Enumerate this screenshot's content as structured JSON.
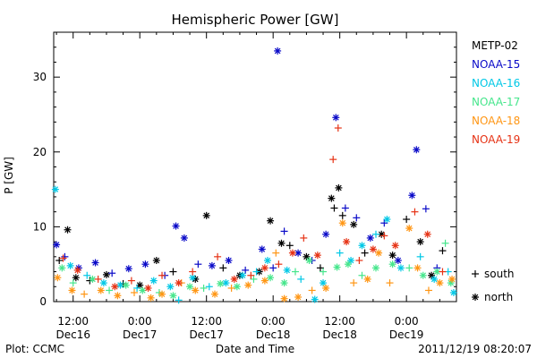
{
  "footer": {
    "plot_credit": "Plot: CCMC",
    "timestamp": "2011/12/19 08:20:07"
  },
  "chart_data": {
    "type": "scatter",
    "title": "Hemispheric Power [GW]",
    "xlabel": "Date and Time",
    "ylabel": "P [GW]",
    "x_unit": "hours since 2011-12-16 00:00",
    "xlim": [
      8.5,
      81
    ],
    "ylim": [
      0,
      36
    ],
    "grid": false,
    "yticks": [
      0,
      10,
      20,
      30
    ],
    "xticks": [
      {
        "x": 12,
        "label": "12:00",
        "date": "Dec16"
      },
      {
        "x": 24,
        "label": "0:00",
        "date": "Dec17"
      },
      {
        "x": 36,
        "label": "12:00",
        "date": "Dec17"
      },
      {
        "x": 48,
        "label": "0:00",
        "date": "Dec18"
      },
      {
        "x": 60,
        "label": "12:00",
        "date": "Dec18"
      },
      {
        "x": 72,
        "label": "0:00",
        "date": "Dec19"
      }
    ],
    "legend_placement": "right, outside plot",
    "marker_legend": [
      {
        "symbol": "+",
        "label": "south"
      },
      {
        "symbol": "*",
        "label": "north"
      }
    ],
    "series": [
      {
        "name": "METP-02",
        "color": "#000000",
        "points": [
          {
            "x": 9.5,
            "y": 5.5,
            "m": "+"
          },
          {
            "x": 11.0,
            "y": 9.6,
            "m": "*"
          },
          {
            "x": 12.5,
            "y": 3.2,
            "m": "*"
          },
          {
            "x": 15.0,
            "y": 2.8,
            "m": "+"
          },
          {
            "x": 18.0,
            "y": 3.6,
            "m": "*"
          },
          {
            "x": 21.0,
            "y": 2.4,
            "m": "+"
          },
          {
            "x": 24.0,
            "y": 2.2,
            "m": "*"
          },
          {
            "x": 27.0,
            "y": 5.5,
            "m": "*"
          },
          {
            "x": 30.0,
            "y": 4.0,
            "m": "+"
          },
          {
            "x": 34.0,
            "y": 3.0,
            "m": "*"
          },
          {
            "x": 36.0,
            "y": 11.5,
            "m": "*"
          },
          {
            "x": 39.0,
            "y": 4.5,
            "m": "+"
          },
          {
            "x": 42.0,
            "y": 3.5,
            "m": "*"
          },
          {
            "x": 45.5,
            "y": 4.0,
            "m": "*"
          },
          {
            "x": 47.5,
            "y": 10.8,
            "m": "*"
          },
          {
            "x": 49.5,
            "y": 7.8,
            "m": "*"
          },
          {
            "x": 51.0,
            "y": 7.5,
            "m": "+"
          },
          {
            "x": 54.0,
            "y": 6.0,
            "m": "*"
          },
          {
            "x": 56.5,
            "y": 4.5,
            "m": "+"
          },
          {
            "x": 58.5,
            "y": 13.8,
            "m": "*"
          },
          {
            "x": 59.0,
            "y": 12.5,
            "m": "+"
          },
          {
            "x": 59.8,
            "y": 15.2,
            "m": "*"
          },
          {
            "x": 60.5,
            "y": 11.5,
            "m": "+"
          },
          {
            "x": 62.5,
            "y": 10.3,
            "m": "*"
          },
          {
            "x": 64.5,
            "y": 6.5,
            "m": "+"
          },
          {
            "x": 67.5,
            "y": 9.0,
            "m": "*"
          },
          {
            "x": 69.5,
            "y": 6.2,
            "m": "*"
          },
          {
            "x": 72.0,
            "y": 11.0,
            "m": "+"
          },
          {
            "x": 74.5,
            "y": 8.0,
            "m": "*"
          },
          {
            "x": 76.5,
            "y": 3.5,
            "m": "*"
          },
          {
            "x": 78.5,
            "y": 6.8,
            "m": "+"
          }
        ]
      },
      {
        "name": "NOAA-15",
        "color": "#0a0ac8",
        "points": [
          {
            "x": 9.0,
            "y": 7.6,
            "m": "*"
          },
          {
            "x": 10.5,
            "y": 6.0,
            "m": "+"
          },
          {
            "x": 13.0,
            "y": 4.5,
            "m": "*"
          },
          {
            "x": 16.0,
            "y": 5.2,
            "m": "*"
          },
          {
            "x": 19.0,
            "y": 3.8,
            "m": "+"
          },
          {
            "x": 22.0,
            "y": 4.4,
            "m": "*"
          },
          {
            "x": 25.0,
            "y": 5.0,
            "m": "*"
          },
          {
            "x": 28.5,
            "y": 3.5,
            "m": "+"
          },
          {
            "x": 30.5,
            "y": 10.1,
            "m": "*"
          },
          {
            "x": 32.0,
            "y": 8.5,
            "m": "*"
          },
          {
            "x": 34.5,
            "y": 5.0,
            "m": "+"
          },
          {
            "x": 37.0,
            "y": 4.8,
            "m": "*"
          },
          {
            "x": 40.0,
            "y": 5.5,
            "m": "*"
          },
          {
            "x": 43.0,
            "y": 4.2,
            "m": "+"
          },
          {
            "x": 46.0,
            "y": 7.0,
            "m": "*"
          },
          {
            "x": 48.0,
            "y": 4.5,
            "m": "+"
          },
          {
            "x": 48.8,
            "y": 33.5,
            "m": "*"
          },
          {
            "x": 50.0,
            "y": 9.4,
            "m": "+"
          },
          {
            "x": 52.5,
            "y": 6.5,
            "m": "*"
          },
          {
            "x": 55.0,
            "y": 5.5,
            "m": "+"
          },
          {
            "x": 57.5,
            "y": 9.0,
            "m": "*"
          },
          {
            "x": 59.3,
            "y": 24.6,
            "m": "*"
          },
          {
            "x": 61.0,
            "y": 12.5,
            "m": "+"
          },
          {
            "x": 63.0,
            "y": 11.2,
            "m": "+"
          },
          {
            "x": 65.5,
            "y": 8.5,
            "m": "*"
          },
          {
            "x": 68.0,
            "y": 10.5,
            "m": "+"
          },
          {
            "x": 70.5,
            "y": 5.5,
            "m": "*"
          },
          {
            "x": 73.0,
            "y": 14.2,
            "m": "*"
          },
          {
            "x": 73.8,
            "y": 20.3,
            "m": "*"
          },
          {
            "x": 75.5,
            "y": 12.4,
            "m": "+"
          },
          {
            "x": 77.5,
            "y": 4.5,
            "m": "+"
          }
        ]
      },
      {
        "name": "NOAA-16",
        "color": "#00c8e6",
        "points": [
          {
            "x": 8.8,
            "y": 15.0,
            "m": "*"
          },
          {
            "x": 11.5,
            "y": 4.8,
            "m": "*"
          },
          {
            "x": 14.5,
            "y": 3.5,
            "m": "+"
          },
          {
            "x": 17.5,
            "y": 2.5,
            "m": "*"
          },
          {
            "x": 20.5,
            "y": 2.2,
            "m": "*"
          },
          {
            "x": 23.5,
            "y": 1.8,
            "m": "+"
          },
          {
            "x": 26.5,
            "y": 2.8,
            "m": "*"
          },
          {
            "x": 29.5,
            "y": 2.0,
            "m": "*"
          },
          {
            "x": 31.0,
            "y": 0.2,
            "m": "+"
          },
          {
            "x": 33.5,
            "y": 3.2,
            "m": "*"
          },
          {
            "x": 36.5,
            "y": 2.0,
            "m": "+"
          },
          {
            "x": 39.5,
            "y": 2.5,
            "m": "*"
          },
          {
            "x": 42.5,
            "y": 3.5,
            "m": "*"
          },
          {
            "x": 45.0,
            "y": 4.0,
            "m": "+"
          },
          {
            "x": 47.0,
            "y": 5.5,
            "m": "*"
          },
          {
            "x": 50.5,
            "y": 4.2,
            "m": "*"
          },
          {
            "x": 53.0,
            "y": 3.0,
            "m": "+"
          },
          {
            "x": 55.5,
            "y": 0.3,
            "m": "*"
          },
          {
            "x": 57.0,
            "y": 2.5,
            "m": "*"
          },
          {
            "x": 60.0,
            "y": 6.5,
            "m": "+"
          },
          {
            "x": 62.0,
            "y": 5.5,
            "m": "*"
          },
          {
            "x": 64.0,
            "y": 7.5,
            "m": "*"
          },
          {
            "x": 66.5,
            "y": 9.0,
            "m": "+"
          },
          {
            "x": 68.5,
            "y": 11.0,
            "m": "*"
          },
          {
            "x": 71.0,
            "y": 4.5,
            "m": "*"
          },
          {
            "x": 74.5,
            "y": 6.0,
            "m": "+"
          },
          {
            "x": 77.0,
            "y": 3.0,
            "m": "*"
          },
          {
            "x": 79.5,
            "y": 4.0,
            "m": "+"
          },
          {
            "x": 80.5,
            "y": 1.2,
            "m": "*"
          }
        ]
      },
      {
        "name": "NOAA-17",
        "color": "#46e68c",
        "points": [
          {
            "x": 10.0,
            "y": 4.5,
            "m": "*"
          },
          {
            "x": 12.0,
            "y": 2.5,
            "m": "+"
          },
          {
            "x": 15.5,
            "y": 3.0,
            "m": "*"
          },
          {
            "x": 18.5,
            "y": 1.5,
            "m": "+"
          },
          {
            "x": 21.5,
            "y": 2.2,
            "m": "*"
          },
          {
            "x": 24.5,
            "y": 1.5,
            "m": "*"
          },
          {
            "x": 27.5,
            "y": 1.2,
            "m": "+"
          },
          {
            "x": 30.0,
            "y": 0.8,
            "m": "*"
          },
          {
            "x": 33.0,
            "y": 2.0,
            "m": "*"
          },
          {
            "x": 35.5,
            "y": 1.8,
            "m": "+"
          },
          {
            "x": 38.5,
            "y": 2.4,
            "m": "*"
          },
          {
            "x": 41.5,
            "y": 2.0,
            "m": "*"
          },
          {
            "x": 44.5,
            "y": 3.0,
            "m": "+"
          },
          {
            "x": 47.5,
            "y": 3.2,
            "m": "*"
          },
          {
            "x": 50.0,
            "y": 2.5,
            "m": "*"
          },
          {
            "x": 52.0,
            "y": 4.0,
            "m": "+"
          },
          {
            "x": 54.5,
            "y": 5.5,
            "m": "*"
          },
          {
            "x": 57.0,
            "y": 4.0,
            "m": "+"
          },
          {
            "x": 59.5,
            "y": 4.6,
            "m": "*"
          },
          {
            "x": 61.5,
            "y": 5.0,
            "m": "*"
          },
          {
            "x": 64.0,
            "y": 3.5,
            "m": "+"
          },
          {
            "x": 66.5,
            "y": 4.5,
            "m": "*"
          },
          {
            "x": 69.5,
            "y": 5.0,
            "m": "*"
          },
          {
            "x": 72.5,
            "y": 4.5,
            "m": "+"
          },
          {
            "x": 75.0,
            "y": 3.5,
            "m": "*"
          },
          {
            "x": 77.5,
            "y": 4.0,
            "m": "*"
          },
          {
            "x": 79.0,
            "y": 7.8,
            "m": "+"
          },
          {
            "x": 80.0,
            "y": 2.5,
            "m": "*"
          }
        ]
      },
      {
        "name": "NOAA-18",
        "color": "#ff9614",
        "points": [
          {
            "x": 9.2,
            "y": 3.2,
            "m": "*"
          },
          {
            "x": 11.8,
            "y": 1.5,
            "m": "*"
          },
          {
            "x": 14.0,
            "y": 1.0,
            "m": "+"
          },
          {
            "x": 17.0,
            "y": 1.5,
            "m": "*"
          },
          {
            "x": 20.0,
            "y": 0.8,
            "m": "*"
          },
          {
            "x": 23.0,
            "y": 1.2,
            "m": "+"
          },
          {
            "x": 26.0,
            "y": 0.5,
            "m": "*"
          },
          {
            "x": 28.0,
            "y": 1.0,
            "m": "*"
          },
          {
            "x": 31.5,
            "y": 2.5,
            "m": "+"
          },
          {
            "x": 34.0,
            "y": 1.5,
            "m": "*"
          },
          {
            "x": 37.5,
            "y": 1.0,
            "m": "*"
          },
          {
            "x": 40.5,
            "y": 1.8,
            "m": "+"
          },
          {
            "x": 43.5,
            "y": 2.2,
            "m": "*"
          },
          {
            "x": 46.5,
            "y": 2.8,
            "m": "*"
          },
          {
            "x": 48.5,
            "y": 6.5,
            "m": "+"
          },
          {
            "x": 50.0,
            "y": 0.4,
            "m": "*"
          },
          {
            "x": 52.5,
            "y": 0.6,
            "m": "*"
          },
          {
            "x": 55.0,
            "y": 1.5,
            "m": "+"
          },
          {
            "x": 57.5,
            "y": 1.8,
            "m": "*"
          },
          {
            "x": 60.5,
            "y": 10.5,
            "m": "*"
          },
          {
            "x": 62.5,
            "y": 2.5,
            "m": "+"
          },
          {
            "x": 65.0,
            "y": 3.0,
            "m": "*"
          },
          {
            "x": 67.0,
            "y": 6.5,
            "m": "*"
          },
          {
            "x": 69.0,
            "y": 2.5,
            "m": "+"
          },
          {
            "x": 72.5,
            "y": 9.8,
            "m": "*"
          },
          {
            "x": 74.0,
            "y": 4.5,
            "m": "*"
          },
          {
            "x": 76.0,
            "y": 1.5,
            "m": "+"
          },
          {
            "x": 78.0,
            "y": 2.5,
            "m": "*"
          },
          {
            "x": 80.2,
            "y": 3.0,
            "m": "*"
          }
        ]
      },
      {
        "name": "NOAA-19",
        "color": "#e63214",
        "points": [
          {
            "x": 10.2,
            "y": 5.8,
            "m": "+"
          },
          {
            "x": 12.8,
            "y": 4.2,
            "m": "*"
          },
          {
            "x": 16.5,
            "y": 3.0,
            "m": "+"
          },
          {
            "x": 19.5,
            "y": 2.0,
            "m": "*"
          },
          {
            "x": 22.5,
            "y": 2.8,
            "m": "+"
          },
          {
            "x": 25.5,
            "y": 1.8,
            "m": "*"
          },
          {
            "x": 28.0,
            "y": 3.5,
            "m": "+"
          },
          {
            "x": 31.0,
            "y": 2.5,
            "m": "*"
          },
          {
            "x": 33.5,
            "y": 4.0,
            "m": "+"
          },
          {
            "x": 38.0,
            "y": 6.0,
            "m": "+"
          },
          {
            "x": 41.0,
            "y": 3.0,
            "m": "*"
          },
          {
            "x": 44.0,
            "y": 3.5,
            "m": "+"
          },
          {
            "x": 46.5,
            "y": 4.5,
            "m": "*"
          },
          {
            "x": 49.0,
            "y": 5.0,
            "m": "+"
          },
          {
            "x": 51.5,
            "y": 6.5,
            "m": "*"
          },
          {
            "x": 53.5,
            "y": 8.5,
            "m": "+"
          },
          {
            "x": 56.0,
            "y": 6.2,
            "m": "*"
          },
          {
            "x": 58.8,
            "y": 19.0,
            "m": "+"
          },
          {
            "x": 59.7,
            "y": 23.2,
            "m": "+"
          },
          {
            "x": 61.2,
            "y": 8.0,
            "m": "*"
          },
          {
            "x": 63.5,
            "y": 5.5,
            "m": "+"
          },
          {
            "x": 66.0,
            "y": 7.0,
            "m": "*"
          },
          {
            "x": 68.0,
            "y": 8.8,
            "m": "+"
          },
          {
            "x": 70.0,
            "y": 7.5,
            "m": "*"
          },
          {
            "x": 73.5,
            "y": 12.0,
            "m": "+"
          },
          {
            "x": 75.8,
            "y": 9.0,
            "m": "*"
          },
          {
            "x": 78.5,
            "y": 4.0,
            "m": "+"
          }
        ]
      }
    ]
  }
}
